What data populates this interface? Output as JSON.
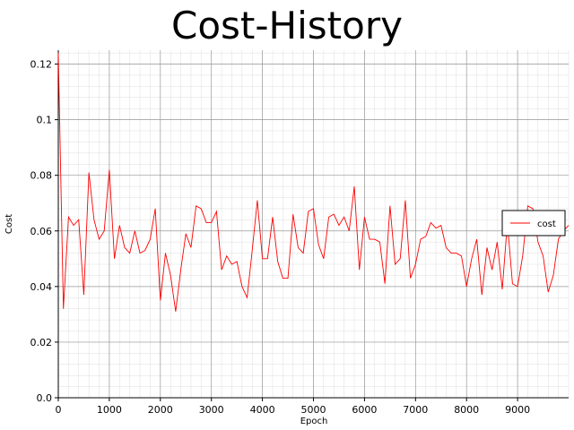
{
  "chart_data": {
    "type": "line",
    "title": "Cost-History",
    "xlabel": "Epoch",
    "ylabel": "Cost",
    "xlim": [
      0,
      10000
    ],
    "ylim": [
      0,
      0.125
    ],
    "x_ticks": [
      0,
      1000,
      2000,
      3000,
      4000,
      5000,
      6000,
      7000,
      8000,
      9000
    ],
    "y_ticks": [
      0.0,
      0.02,
      0.04,
      0.06,
      0.08,
      0.1,
      0.12
    ],
    "grid": true,
    "minor_grid": true,
    "legend_position": "right",
    "series": [
      {
        "name": "cost",
        "color": "#ff0000",
        "x": [
          0,
          100,
          200,
          300,
          400,
          500,
          600,
          700,
          800,
          900,
          1000,
          1100,
          1200,
          1300,
          1400,
          1500,
          1600,
          1700,
          1800,
          1900,
          2000,
          2100,
          2200,
          2300,
          2400,
          2500,
          2600,
          2700,
          2800,
          2900,
          3000,
          3100,
          3200,
          3300,
          3400,
          3500,
          3600,
          3700,
          3800,
          3900,
          4000,
          4100,
          4200,
          4300,
          4400,
          4500,
          4600,
          4700,
          4800,
          4900,
          5000,
          5100,
          5200,
          5300,
          5400,
          5500,
          5600,
          5700,
          5800,
          5900,
          6000,
          6100,
          6200,
          6300,
          6400,
          6500,
          6600,
          6700,
          6800,
          6900,
          7000,
          7100,
          7200,
          7300,
          7400,
          7500,
          7600,
          7700,
          7800,
          7900,
          8000,
          8100,
          8200,
          8300,
          8400,
          8500,
          8600,
          8700,
          8800,
          8900,
          9000,
          9100,
          9200,
          9300,
          9400,
          9500,
          9600,
          9700,
          9800,
          9900,
          10000
        ],
        "values": [
          0.124,
          0.032,
          0.065,
          0.062,
          0.064,
          0.037,
          0.081,
          0.064,
          0.057,
          0.06,
          0.082,
          0.05,
          0.062,
          0.054,
          0.052,
          0.06,
          0.052,
          0.053,
          0.057,
          0.068,
          0.035,
          0.052,
          0.044,
          0.031,
          0.046,
          0.059,
          0.054,
          0.069,
          0.068,
          0.063,
          0.063,
          0.067,
          0.046,
          0.051,
          0.048,
          0.049,
          0.04,
          0.036,
          0.053,
          0.071,
          0.05,
          0.05,
          0.065,
          0.049,
          0.043,
          0.043,
          0.066,
          0.054,
          0.052,
          0.067,
          0.068,
          0.055,
          0.05,
          0.065,
          0.066,
          0.062,
          0.065,
          0.06,
          0.076,
          0.046,
          0.065,
          0.057,
          0.057,
          0.056,
          0.041,
          0.069,
          0.048,
          0.05,
          0.071,
          0.043,
          0.048,
          0.057,
          0.058,
          0.063,
          0.061,
          0.062,
          0.054,
          0.052,
          0.052,
          0.051,
          0.04,
          0.05,
          0.057,
          0.037,
          0.054,
          0.046,
          0.056,
          0.039,
          0.063,
          0.041,
          0.04,
          0.051,
          0.069,
          0.068,
          0.056,
          0.051,
          0.038,
          0.044,
          0.057,
          0.06,
          0.062
        ]
      }
    ]
  }
}
